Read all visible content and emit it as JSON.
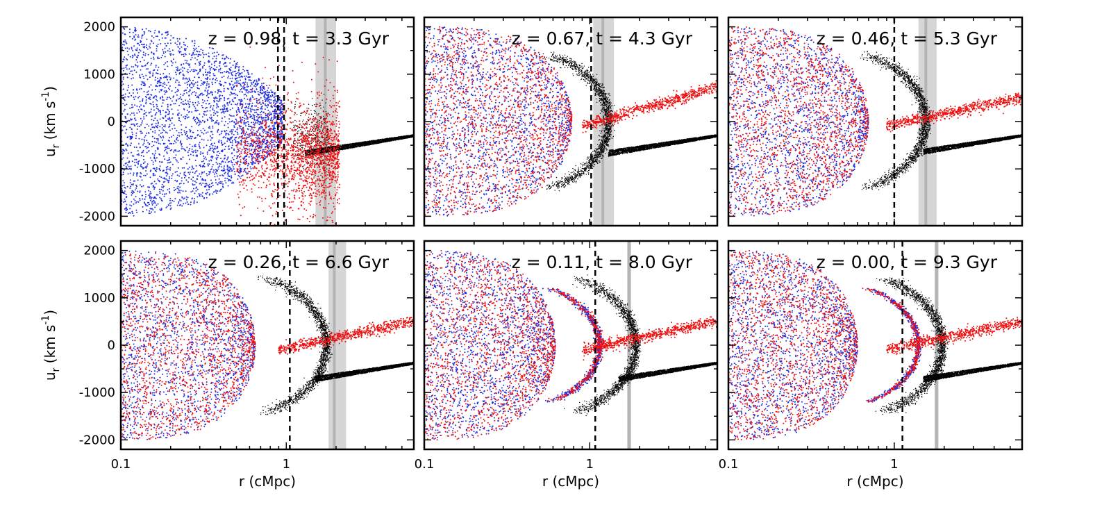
{
  "figure": {
    "type": "scatter",
    "rows": 2,
    "cols": 3
  },
  "colors": {
    "blue": "#1f2fe0",
    "red": "#ee1111",
    "black": "#000000",
    "shade": "#d6d6d6",
    "shade_line": "#b4b4b4"
  },
  "chart_data": [
    {
      "type": "scatter",
      "title": "z = 0.98, t = 3.3 Gyr",
      "xlabel": "",
      "ylabel": "u_r (km s^-1)",
      "xscale": "log",
      "xlim": [
        0.1,
        5.9
      ],
      "ylim": [
        -2200,
        2200
      ],
      "xticks": [],
      "yticks": [
        "2000",
        "1000",
        "0",
        "-1000",
        "-2000"
      ],
      "vline_dashed": 0.89,
      "vline_dashed2": 0.97,
      "shaded_band": [
        1.5,
        2.0
      ],
      "band_line": 1.72,
      "stage": 0,
      "series": [
        "blue",
        "red",
        "black"
      ]
    },
    {
      "type": "scatter",
      "title": "z = 0.67, t = 4.3 Gyr",
      "xlabel": "",
      "ylabel": "",
      "xscale": "log",
      "xlim": [
        0.1,
        5.9
      ],
      "ylim": [
        -2200,
        2200
      ],
      "xticks": [],
      "yticks": [],
      "vline_dashed": 1.02,
      "vline_dashed2": null,
      "shaded_band": [
        1.05,
        1.4
      ],
      "band_line": 1.2,
      "stage": 1,
      "series": [
        "blue",
        "red",
        "black"
      ]
    },
    {
      "type": "scatter",
      "title": "z = 0.46, t = 5.3 Gyr",
      "xlabel": "",
      "ylabel": "",
      "xscale": "log",
      "xlim": [
        0.1,
        5.9
      ],
      "ylim": [
        -2200,
        2200
      ],
      "xticks": [],
      "yticks": [],
      "vline_dashed": 1.0,
      "vline_dashed2": null,
      "shaded_band": [
        1.4,
        1.8
      ],
      "band_line": 1.55,
      "stage": 2,
      "series": [
        "blue",
        "red",
        "black"
      ]
    },
    {
      "type": "scatter",
      "title": "z = 0.26, t = 6.6 Gyr",
      "xlabel": "r (cMpc)",
      "ylabel": "u_r (km s^-1)",
      "xscale": "log",
      "xlim": [
        0.1,
        5.9
      ],
      "ylim": [
        -2200,
        2200
      ],
      "xticks": [
        "0.1",
        "1"
      ],
      "yticks": [
        "2000",
        "1000",
        "0",
        "-1000",
        "-2000"
      ],
      "vline_dashed": 1.05,
      "vline_dashed2": null,
      "shaded_band": [
        1.8,
        2.3
      ],
      "band_line": 1.95,
      "stage": 3,
      "series": [
        "blue",
        "red",
        "black"
      ]
    },
    {
      "type": "scatter",
      "title": "z = 0.11, t = 8.0 Gyr",
      "xlabel": "r (cMpc)",
      "ylabel": "",
      "xscale": "log",
      "xlim": [
        0.1,
        5.9
      ],
      "ylim": [
        -2200,
        2200
      ],
      "xticks": [
        "0.1",
        "1"
      ],
      "yticks": [],
      "vline_dashed": 1.08,
      "vline_dashed2": null,
      "shaded_band": [
        1.68,
        1.78
      ],
      "band_line": 1.73,
      "stage": 4,
      "series": [
        "blue",
        "red",
        "black"
      ]
    },
    {
      "type": "scatter",
      "title": "z = 0.00, t = 9.3 Gyr",
      "xlabel": "r (cMpc)",
      "ylabel": "",
      "xscale": "log",
      "xlim": [
        0.1,
        5.9
      ],
      "ylim": [
        -2200,
        2200
      ],
      "xticks": [
        "0.1",
        "1"
      ],
      "yticks": [],
      "vline_dashed": 1.12,
      "vline_dashed2": null,
      "shaded_band": [
        1.75,
        1.85
      ],
      "band_line": 1.8,
      "stage": 5,
      "series": [
        "blue",
        "red",
        "black"
      ]
    }
  ]
}
